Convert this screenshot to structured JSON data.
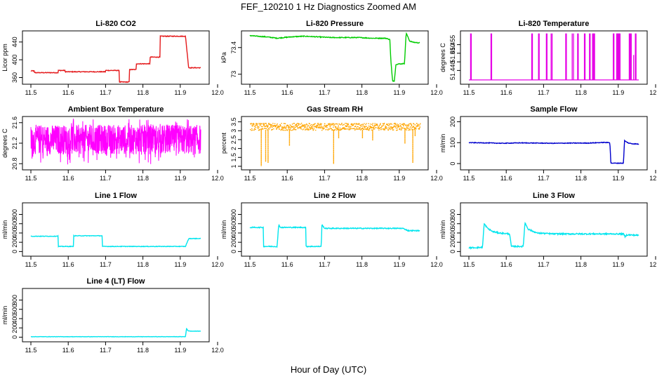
{
  "figure": {
    "title": "FEF_120210  1 Hz Diagnostics Zoomed AM",
    "xlabel": "Hour of Day (UTC)"
  },
  "chart_data": [
    {
      "type": "line",
      "title": "Li-820 CO2",
      "ylabel": "Licor ppm",
      "color": "#e41a1c",
      "xlim": [
        11.5,
        12.0
      ],
      "ylim": [
        345,
        465
      ],
      "xticks": [
        11.5,
        11.6,
        11.7,
        11.8,
        11.9,
        12.0
      ],
      "yticks": [
        360,
        400,
        440
      ],
      "series": [
        {
          "name": "CO2",
          "noise": 0.8,
          "x": [
            11.5,
            11.51,
            11.51,
            11.58,
            11.58,
            11.6,
            11.6,
            11.72,
            11.72,
            11.76,
            11.76,
            11.79,
            11.79,
            11.81,
            11.81,
            11.85,
            11.85,
            11.88,
            11.88,
            11.955,
            11.955,
            11.965,
            11.965,
            12.0
          ],
          "y": [
            375,
            375,
            371,
            371,
            376,
            376,
            373,
            373,
            376,
            376,
            350,
            350,
            378,
            378,
            391,
            391,
            406,
            406,
            453,
            453,
            453,
            378,
            382,
            382
          ]
        }
      ]
    },
    {
      "type": "line",
      "title": "Li-820 Pressure",
      "ylabel": "kPa",
      "color": "#00cc00",
      "xlim": [
        11.5,
        12.0
      ],
      "ylim": [
        72.85,
        73.65
      ],
      "xticks": [
        11.5,
        11.6,
        11.7,
        11.8,
        11.9,
        12.0
      ],
      "yticks": [
        73.0,
        73.4
      ],
      "series": [
        {
          "name": "Pressure",
          "noise": 0.006,
          "x": [
            11.5,
            11.52,
            11.55,
            11.58,
            11.62,
            11.66,
            11.7,
            11.74,
            11.78,
            11.82,
            11.86,
            11.9,
            11.912,
            11.915,
            11.92,
            11.925,
            11.93,
            11.955,
            11.96,
            11.97,
            11.98,
            12.0
          ],
          "y": [
            73.58,
            73.57,
            73.56,
            73.54,
            73.56,
            73.57,
            73.56,
            73.55,
            73.55,
            73.55,
            73.54,
            73.54,
            73.52,
            73.2,
            72.9,
            72.9,
            73.15,
            73.16,
            73.62,
            73.5,
            73.48,
            73.47
          ]
        }
      ]
    },
    {
      "type": "line",
      "title": "Li-820 Temperature",
      "ylabel": "degrees C",
      "color": "#e600e6",
      "xlim": [
        11.5,
        12.0
      ],
      "ylim": [
        51.432,
        51.463
      ],
      "xticks": [
        11.5,
        11.6,
        11.7,
        11.8,
        11.9,
        12.0
      ],
      "yticks": [
        51.44,
        51.445,
        51.45,
        51.455
      ],
      "ytick_labels": [
        "51.440",
        "",
        "51.450",
        "51.455"
      ],
      "base": 51.4345,
      "spike_top": 51.4615,
      "spikes": [
        11.505,
        11.507,
        11.565,
        11.567,
        11.685,
        11.687,
        11.705,
        11.707,
        11.728,
        11.73,
        11.742,
        11.745,
        11.785,
        11.787,
        11.804,
        11.808,
        11.82,
        11.822,
        11.84,
        11.842,
        11.855,
        11.857,
        11.864,
        11.866,
        11.868,
        11.87,
        11.925,
        11.927,
        11.935,
        11.937,
        11.939,
        11.941,
        11.943,
        11.945,
        11.972,
        11.974,
        11.976,
        11.978,
        11.99,
        11.992
      ]
    },
    {
      "type": "line",
      "title": "Ambient Box Temperature",
      "ylabel": "degrees C",
      "color": "#ff00ff",
      "xlim": [
        11.5,
        12.0
      ],
      "ylim": [
        20.68,
        21.72
      ],
      "xticks": [
        11.5,
        11.6,
        11.7,
        11.8,
        11.9,
        12.0
      ],
      "yticks": [
        20.8,
        21.2,
        21.6
      ],
      "ytick_labels": [
        "20.8",
        "21.2",
        "21.6"
      ],
      "mean": 21.22,
      "band_low": 20.98,
      "band_high": 21.56,
      "outliers_low": 20.78,
      "outliers_high": 21.68
    },
    {
      "type": "line",
      "title": "Gas Stream RH",
      "ylabel": "percent",
      "color": "#ffa500",
      "xlim": [
        11.5,
        12.0
      ],
      "ylim": [
        0.8,
        3.8
      ],
      "xticks": [
        11.5,
        11.6,
        11.7,
        11.8,
        11.9,
        12.0
      ],
      "yticks": [
        1.0,
        1.5,
        2.0,
        2.5,
        3.0,
        3.5
      ],
      "band_low": 3.05,
      "band_high": 3.45,
      "dips": [
        [
          11.532,
          1.05
        ],
        [
          11.545,
          1.3
        ],
        [
          11.552,
          1.2
        ],
        [
          11.615,
          2.2
        ],
        [
          11.745,
          1.15
        ],
        [
          11.76,
          2.6
        ],
        [
          11.83,
          2.6
        ],
        [
          11.86,
          2.5
        ],
        [
          11.955,
          2.3
        ],
        [
          11.978,
          1.2
        ],
        [
          11.985,
          2.7
        ]
      ]
    },
    {
      "type": "line",
      "title": "Sample Flow",
      "ylabel": "ml/min",
      "color": "#0000cd",
      "xlim": [
        11.5,
        12.0
      ],
      "ylim": [
        -30,
        225
      ],
      "xticks": [
        11.5,
        11.6,
        11.7,
        11.8,
        11.9,
        12.0
      ],
      "yticks": [
        0,
        100,
        200
      ],
      "series": [
        {
          "name": "Sample Flow",
          "noise": 1.5,
          "x": [
            11.5,
            11.55,
            11.6,
            11.65,
            11.7,
            11.75,
            11.8,
            11.85,
            11.9,
            11.915,
            11.918,
            11.955,
            11.958,
            11.962,
            11.97,
            11.98,
            12.0
          ],
          "y": [
            100,
            99,
            97,
            99,
            98,
            97,
            98,
            98,
            101,
            100,
            2,
            2,
            110,
            105,
            98,
            95,
            93
          ]
        }
      ]
    },
    {
      "type": "line",
      "title": "Line 1 Flow",
      "ylabel": "ml/min",
      "color": "#00e5ee",
      "xlim": [
        11.5,
        12.0
      ],
      "ylim": [
        -100,
        1050
      ],
      "xticks": [
        11.5,
        11.6,
        11.7,
        11.8,
        11.9,
        12.0
      ],
      "yticks": [
        0,
        200,
        400,
        600,
        800
      ],
      "series": [
        {
          "name": "Line 1 Flow",
          "noise": 6,
          "x": [
            11.5,
            11.57,
            11.58,
            11.58,
            11.62,
            11.625,
            11.625,
            11.7,
            11.71,
            11.71,
            11.955,
            11.96,
            11.965,
            12.0
          ],
          "y": [
            330,
            330,
            335,
            110,
            110,
            110,
            340,
            340,
            340,
            110,
            110,
            200,
            280,
            280
          ]
        }
      ]
    },
    {
      "type": "line",
      "title": "Line 2 Flow",
      "ylabel": "ml/min",
      "color": "#00e5ee",
      "xlim": [
        11.5,
        12.0
      ],
      "ylim": [
        -100,
        1050
      ],
      "xticks": [
        11.5,
        11.6,
        11.7,
        11.8,
        11.9,
        12.0
      ],
      "yticks": [
        0,
        200,
        400,
        600,
        800
      ],
      "series": [
        {
          "name": "Line 2 Flow",
          "noise": 10,
          "x": [
            11.5,
            11.54,
            11.54,
            11.58,
            11.585,
            11.59,
            11.66,
            11.665,
            11.665,
            11.71,
            11.712,
            11.72,
            11.95,
            11.96,
            11.965,
            12.0
          ],
          "y": [
            520,
            520,
            110,
            110,
            580,
            520,
            520,
            520,
            110,
            110,
            580,
            500,
            500,
            470,
            450,
            450
          ]
        }
      ]
    },
    {
      "type": "line",
      "title": "Line 3 Flow",
      "ylabel": "ml/min",
      "color": "#00e5ee",
      "xlim": [
        11.5,
        12.0
      ],
      "ylim": [
        -100,
        1050
      ],
      "xticks": [
        11.5,
        11.6,
        11.7,
        11.8,
        11.9,
        12.0
      ],
      "yticks": [
        0,
        200,
        400,
        600,
        800
      ],
      "series": [
        {
          "name": "Line 3 Flow",
          "noise": 14,
          "x": [
            11.5,
            11.54,
            11.54,
            11.545,
            11.555,
            11.57,
            11.59,
            11.62,
            11.625,
            11.625,
            11.66,
            11.66,
            11.665,
            11.675,
            11.7,
            11.75,
            11.8,
            11.9,
            11.955,
            11.96,
            11.965,
            12.0
          ],
          "y": [
            80,
            90,
            90,
            600,
            500,
            430,
            400,
            380,
            110,
            110,
            110,
            110,
            620,
            480,
            400,
            380,
            380,
            380,
            380,
            320,
            360,
            350
          ]
        }
      ]
    },
    {
      "type": "line",
      "title": "Line 4 (LT) Flow",
      "ylabel": "ml/min",
      "color": "#00e5ee",
      "xlim": [
        11.5,
        12.0
      ],
      "ylim": [
        -100,
        1050
      ],
      "xticks": [
        11.5,
        11.6,
        11.7,
        11.8,
        11.9,
        12.0
      ],
      "yticks": [
        0,
        200,
        400,
        600,
        800
      ],
      "series": [
        {
          "name": "Line 4 Flow",
          "noise": 3,
          "x": [
            11.5,
            11.6,
            11.7,
            11.8,
            11.9,
            11.955,
            11.958,
            11.962,
            11.97,
            12.0
          ],
          "y": [
            10,
            10,
            10,
            10,
            10,
            10,
            190,
            140,
            130,
            130
          ]
        }
      ]
    }
  ]
}
